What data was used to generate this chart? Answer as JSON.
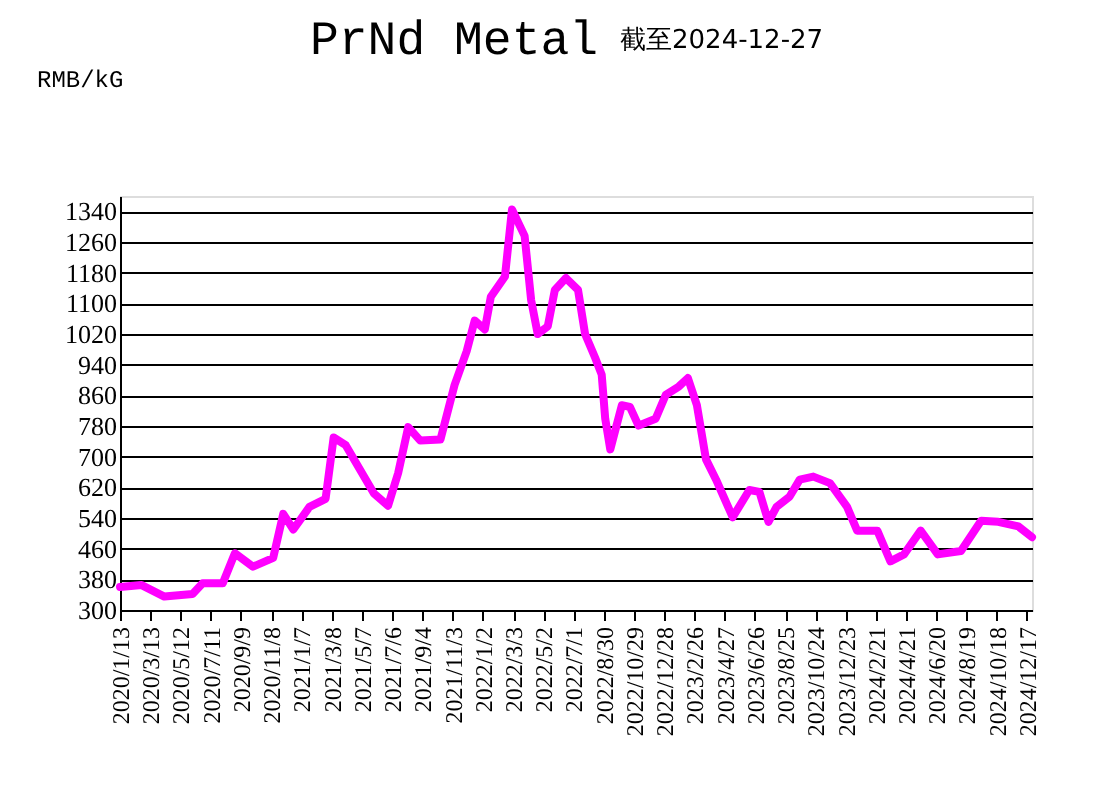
{
  "chart_data": {
    "type": "line",
    "title": "PrNd Metal",
    "subtitle": "截至2024-12-27",
    "ylabel": "RMB/kG",
    "x": [
      "2020-01-13",
      "2020-02-25",
      "2020-04-10",
      "2020-06-05",
      "2020-06-25",
      "2020-08-04",
      "2020-08-28",
      "2020-10-03",
      "2020-11-12",
      "2020-12-02",
      "2020-12-22",
      "2021-01-23",
      "2021-02-24",
      "2021-03-12",
      "2021-04-05",
      "2021-05-31",
      "2021-06-28",
      "2021-07-18",
      "2021-08-07",
      "2021-08-31",
      "2021-10-10",
      "2021-11-07",
      "2021-12-01",
      "2021-12-17",
      "2022-01-06",
      "2022-01-18",
      "2022-02-15",
      "2022-03-01",
      "2022-03-26",
      "2022-04-08",
      "2022-04-21",
      "2022-05-11",
      "2022-05-25",
      "2022-06-16",
      "2022-07-10",
      "2022-07-24",
      "2022-08-13",
      "2022-08-26",
      "2022-09-02",
      "2022-09-12",
      "2022-10-05",
      "2022-10-21",
      "2022-11-07",
      "2022-12-11",
      "2022-12-31",
      "2023-01-26",
      "2023-02-13",
      "2023-03-03",
      "2023-03-21",
      "2023-04-10",
      "2023-05-13",
      "2023-06-15",
      "2023-07-05",
      "2023-07-23",
      "2023-08-08",
      "2023-09-03",
      "2023-09-23",
      "2023-10-20",
      "2023-11-22",
      "2023-12-26",
      "2024-01-15",
      "2024-02-24",
      "2024-03-21",
      "2024-04-17",
      "2024-05-20",
      "2024-06-23",
      "2024-08-08",
      "2024-09-17",
      "2024-10-21",
      "2024-11-30",
      "2024-12-27"
    ],
    "series": [
      {
        "color": "#ff00ff",
        "values": [
          360,
          365,
          335,
          342,
          370,
          370,
          448,
          413,
          436,
          551,
          510,
          569,
          590,
          750,
          730,
          604,
          572,
          657,
          777,
          742,
          745,
          887,
          975,
          1055,
          1032,
          1117,
          1170,
          1345,
          1276,
          1108,
          1020,
          1040,
          1135,
          1166,
          1135,
          1020,
          958,
          914,
          799,
          719,
          834,
          830,
          781,
          799,
          861,
          883,
          905,
          834,
          693,
          640,
          542,
          613,
          608,
          530,
          569,
          596,
          640,
          648,
          631,
          569,
          507,
          507,
          427,
          445,
          507,
          445,
          454,
          533,
          530,
          518,
          490
        ]
      }
    ],
    "xlim": [
      "2020-01-13",
      "2024-12-27"
    ],
    "xticks": [
      {
        "value": "2020-01-13",
        "label": "2020/1/13"
      },
      {
        "value": "2020-03-13",
        "label": "2020/3/13"
      },
      {
        "value": "2020-05-12",
        "label": "2020/5/12"
      },
      {
        "value": "2020-07-11",
        "label": "2020/7/11"
      },
      {
        "value": "2020-09-09",
        "label": "2020/9/9"
      },
      {
        "value": "2020-11-08",
        "label": "2020/11/8"
      },
      {
        "value": "2021-01-07",
        "label": "2021/1/7"
      },
      {
        "value": "2021-03-08",
        "label": "2021/3/8"
      },
      {
        "value": "2021-05-07",
        "label": "2021/5/7"
      },
      {
        "value": "2021-07-06",
        "label": "2021/7/6"
      },
      {
        "value": "2021-09-04",
        "label": "2021/9/4"
      },
      {
        "value": "2021-11-03",
        "label": "2021/11/3"
      },
      {
        "value": "2022-01-02",
        "label": "2022/1/2"
      },
      {
        "value": "2022-03-03",
        "label": "2022/3/3"
      },
      {
        "value": "2022-05-02",
        "label": "2022/5/2"
      },
      {
        "value": "2022-07-01",
        "label": "2022/7/1"
      },
      {
        "value": "2022-08-30",
        "label": "2022/8/30"
      },
      {
        "value": "2022-10-29",
        "label": "2022/10/29"
      },
      {
        "value": "2022-12-28",
        "label": "2022/12/28"
      },
      {
        "value": "2023-02-26",
        "label": "2023/2/26"
      },
      {
        "value": "2023-04-27",
        "label": "2023/4/27"
      },
      {
        "value": "2023-06-26",
        "label": "2023/6/26"
      },
      {
        "value": "2023-08-25",
        "label": "2023/8/25"
      },
      {
        "value": "2023-10-24",
        "label": "2023/10/24"
      },
      {
        "value": "2023-12-23",
        "label": "2023/12/23"
      },
      {
        "value": "2024-02-21",
        "label": "2024/2/21"
      },
      {
        "value": "2024-04-21",
        "label": "2024/4/21"
      },
      {
        "value": "2024-06-20",
        "label": "2024/6/20"
      },
      {
        "value": "2024-08-19",
        "label": "2024/8/19"
      },
      {
        "value": "2024-10-18",
        "label": "2024/10/18"
      },
      {
        "value": "2024-12-17",
        "label": "2024/12/17"
      }
    ],
    "ylim": [
      300,
      1380
    ],
    "yticks": [
      300,
      380,
      460,
      540,
      620,
      700,
      780,
      860,
      940,
      1020,
      1100,
      1180,
      1260,
      1340
    ],
    "grid": "y",
    "legend": false,
    "line_style": "solid",
    "marker": "none"
  }
}
